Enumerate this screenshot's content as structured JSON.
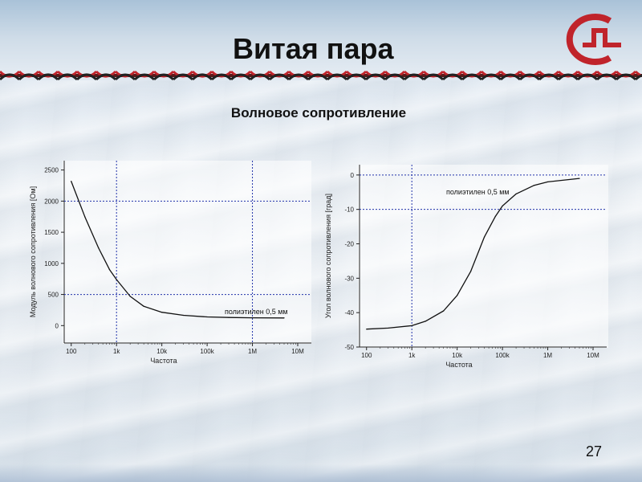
{
  "slide": {
    "title": "Витая пара",
    "subtitle": "Волновое сопротивление",
    "page_number": "27",
    "accent_color": "#c0242b"
  },
  "chart_data": [
    {
      "type": "line",
      "title": "",
      "xlabel": "Частота",
      "ylabel": "Модуль волнового сопротивления [Ом]",
      "x_scale": "log",
      "xlim": [
        70,
        20000000
      ],
      "ylim": [
        -280,
        2650
      ],
      "x_ticks": [
        {
          "value": 100,
          "label": "100"
        },
        {
          "value": 1000,
          "label": "1k"
        },
        {
          "value": 10000,
          "label": "10k"
        },
        {
          "value": 100000,
          "label": "100k"
        },
        {
          "value": 1000000,
          "label": "1M"
        },
        {
          "value": 10000000,
          "label": "10M"
        }
      ],
      "y_ticks": [
        {
          "value": 0,
          "label": "0"
        },
        {
          "value": 500,
          "label": "500"
        },
        {
          "value": 1000,
          "label": "1000"
        },
        {
          "value": 1500,
          "label": "1500"
        },
        {
          "value": 2000,
          "label": "2000"
        },
        {
          "value": 2500,
          "label": "2500"
        }
      ],
      "ref_lines_x": [
        1000,
        1000000
      ],
      "ref_lines_y": [
        500,
        2000
      ],
      "series": [
        {
          "name": "полиэтилен 0,5 мм",
          "x": [
            100,
            200,
            400,
            700,
            1000,
            2000,
            4000,
            10000,
            30000,
            100000,
            300000,
            1000000,
            5000000
          ],
          "y": [
            2320,
            1750,
            1250,
            900,
            740,
            470,
            310,
            215,
            165,
            140,
            130,
            125,
            123
          ]
        }
      ],
      "annotations": [
        "полиэтилен 0,5 мм"
      ]
    },
    {
      "type": "line",
      "title": "",
      "xlabel": "Частота",
      "ylabel": "Угол волнового сопротивления [град]",
      "x_scale": "log",
      "xlim": [
        70,
        20000000
      ],
      "ylim": [
        -50,
        3
      ],
      "x_ticks": [
        {
          "value": 100,
          "label": "100"
        },
        {
          "value": 1000,
          "label": "1k"
        },
        {
          "value": 10000,
          "label": "10k"
        },
        {
          "value": 100000,
          "label": "100k"
        },
        {
          "value": 1000000,
          "label": "1M"
        },
        {
          "value": 10000000,
          "label": "10M"
        }
      ],
      "y_ticks": [
        {
          "value": 0,
          "label": "0"
        },
        {
          "value": -10,
          "label": "-10"
        },
        {
          "value": -20,
          "label": "-20"
        },
        {
          "value": -30,
          "label": "-30"
        },
        {
          "value": -40,
          "label": "-40"
        },
        {
          "value": -50,
          "label": "-50"
        }
      ],
      "ref_lines_x": [
        1000
      ],
      "ref_lines_y": [
        0,
        -10
      ],
      "series": [
        {
          "name": "полиэтилен 0,5 мм",
          "x": [
            100,
            300,
            1000,
            2000,
            5000,
            10000,
            20000,
            40000,
            70000,
            100000,
            200000,
            500000,
            1000000,
            5000000
          ],
          "y": [
            -44.8,
            -44.5,
            -43.8,
            -42.5,
            -39.5,
            -35,
            -28,
            -18,
            -12,
            -9,
            -5.5,
            -3,
            -2,
            -1
          ]
        }
      ],
      "annotations": [
        "полиэтилен 0,5 мм"
      ]
    }
  ]
}
